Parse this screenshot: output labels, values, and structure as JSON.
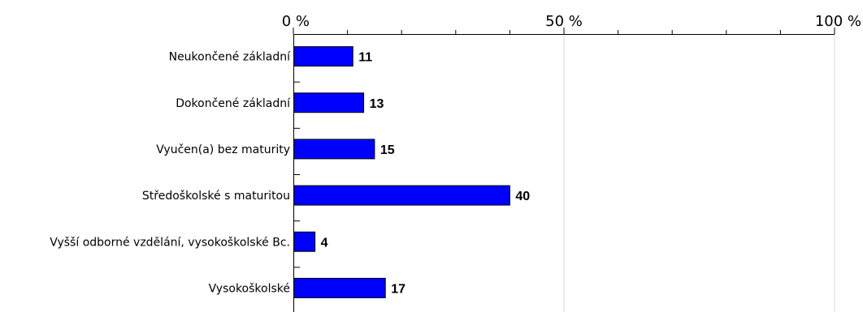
{
  "chart_data": {
    "type": "bar",
    "orientation": "horizontal",
    "categories": [
      "Neukončené základní",
      "Dokončené základní",
      "Vyučen(a) bez maturity",
      "Středoškolské s maturitou",
      "Vyšší odborné vzdělání, vysokoškolské Bc.",
      "Vysokoškolské"
    ],
    "values": [
      11,
      13,
      15,
      40,
      4,
      17
    ],
    "value_labels": [
      "11",
      "13",
      "15",
      "40",
      "4",
      "17"
    ],
    "xlim": [
      0,
      100
    ],
    "xticks": [
      0,
      50,
      100
    ],
    "xtick_labels": [
      "0 %",
      "50 %",
      "100 %"
    ],
    "x_axis_position": "top",
    "grid": true,
    "bar_color": "#0000ff",
    "title": "",
    "xlabel": "",
    "ylabel": ""
  }
}
